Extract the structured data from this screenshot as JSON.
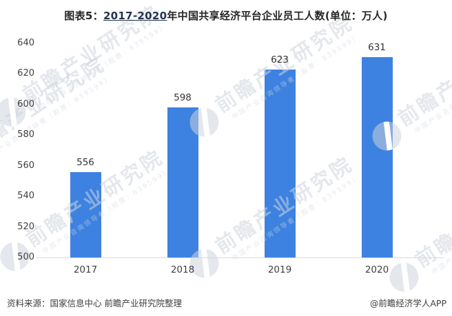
{
  "title": {
    "prefix": "图表5：",
    "range": "2017-2020",
    "suffix": "年中国共享经济平台企业员工人数(单位：万人)"
  },
  "chart_data": {
    "type": "bar",
    "title": "图表5：2017-2020年中国共享经济平台企业员工人数(单位：万人)",
    "categories": [
      "2017",
      "2018",
      "2019",
      "2020"
    ],
    "values": [
      556,
      598,
      623,
      631
    ],
    "xlabel": "",
    "ylabel": "",
    "ylim": [
      500,
      640
    ],
    "yticks": [
      500,
      520,
      540,
      560,
      580,
      600,
      620,
      640
    ],
    "grid": false,
    "legend": "none",
    "bar_color": "#3d82e0",
    "axis_line_color": "#d9d9d9",
    "label_color": "#333333"
  },
  "watermark": {
    "logo": "qianzhan-circle-logo",
    "text_large": "前瞻产业研究院",
    "text_small": "中国产业咨询领导者（股票：839599）"
  },
  "footer": {
    "source": "资料来源：国家信息中心 前瞻产业研究院整理",
    "credit": "@前瞻经济学人APP"
  }
}
